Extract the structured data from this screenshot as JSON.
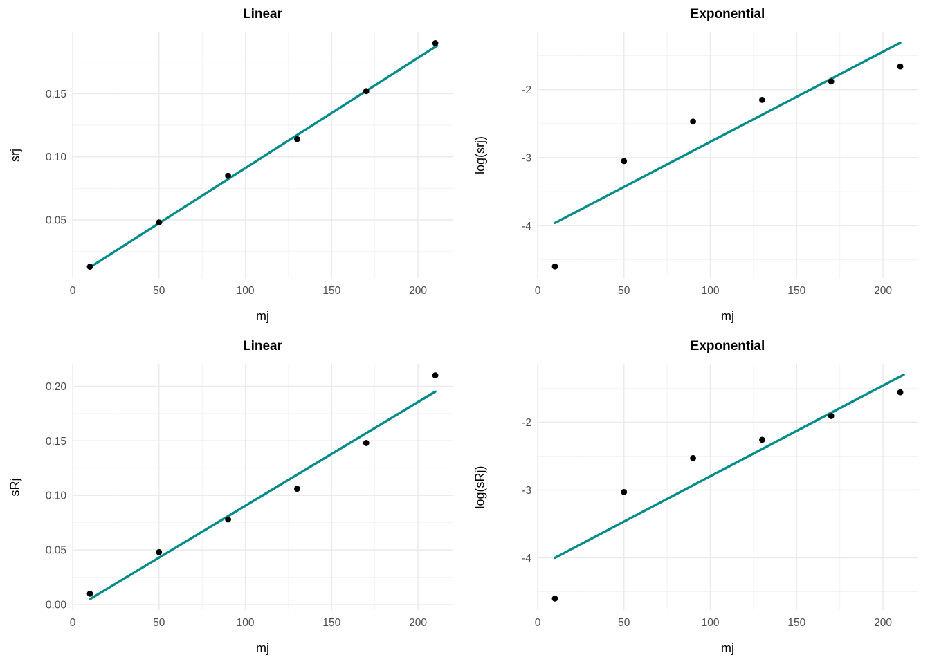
{
  "page": {
    "background": "#FFFFFF"
  },
  "colors": {
    "fit_line": "#008B8B",
    "point": "#000000",
    "grid_major": "#EBEBEB",
    "grid_minor": "#F2F2F2",
    "tick_text": "#4D4D4D",
    "title_text": "#000000",
    "background": "#FFFFFF"
  },
  "chart_data": [
    {
      "type": "scatter",
      "title": "Linear",
      "xlabel": "mj",
      "ylabel": "srj",
      "grid": true,
      "legend": "none",
      "xlim": [
        0,
        220
      ],
      "ylim": [
        0.004,
        0.199
      ],
      "xticks": [
        0,
        50,
        100,
        150,
        200
      ],
      "xtick_labels": [
        "0",
        "50",
        "100",
        "150",
        "200"
      ],
      "yticks": [
        0.05,
        0.1,
        0.15
      ],
      "ytick_labels": [
        "0.05",
        "0.10",
        "0.15"
      ],
      "points": {
        "x": [
          10,
          50,
          90,
          130,
          170,
          210
        ],
        "y": [
          0.013,
          0.048,
          0.085,
          0.114,
          0.152,
          0.19
        ]
      },
      "fit_line": {
        "x": [
          10,
          211
        ],
        "y": [
          0.0125,
          0.188
        ]
      }
    },
    {
      "type": "scatter",
      "title": "Exponential",
      "xlabel": "mj",
      "ylabel": "log(srj)",
      "grid": true,
      "legend": "none",
      "xlim": [
        0,
        220
      ],
      "ylim": [
        -4.77,
        -1.15
      ],
      "xticks": [
        0,
        50,
        100,
        150,
        200
      ],
      "xtick_labels": [
        "0",
        "50",
        "100",
        "150",
        "200"
      ],
      "yticks": [
        -4,
        -3,
        -2
      ],
      "ytick_labels": [
        "-4",
        "-3",
        "-2"
      ],
      "points": {
        "x": [
          10,
          50,
          90,
          130,
          170,
          210
        ],
        "y": [
          -4.6,
          -3.05,
          -2.47,
          -2.15,
          -1.88,
          -1.66
        ]
      },
      "fit_line": {
        "x": [
          10,
          210
        ],
        "y": [
          -3.96,
          -1.31
        ]
      }
    },
    {
      "type": "scatter",
      "title": "Linear",
      "xlabel": "mj",
      "ylabel": "sRj",
      "grid": true,
      "legend": "none",
      "xlim": [
        0,
        220
      ],
      "ylim": [
        -0.005,
        0.2205
      ],
      "xticks": [
        0,
        50,
        100,
        150,
        200
      ],
      "xtick_labels": [
        "0",
        "50",
        "100",
        "150",
        "200"
      ],
      "yticks": [
        0.0,
        0.05,
        0.1,
        0.15,
        0.2
      ],
      "ytick_labels": [
        "0.00",
        "0.05",
        "0.10",
        "0.15",
        "0.20"
      ],
      "points": {
        "x": [
          10,
          50,
          90,
          130,
          170,
          210
        ],
        "y": [
          0.01,
          0.048,
          0.078,
          0.106,
          0.148,
          0.21
        ]
      },
      "fit_line": {
        "x": [
          10,
          210
        ],
        "y": [
          0.005,
          0.195
        ]
      }
    },
    {
      "type": "scatter",
      "title": "Exponential",
      "xlabel": "mj",
      "ylabel": "log(sRj)",
      "grid": true,
      "legend": "none",
      "xlim": [
        0,
        220
      ],
      "ylim": [
        -4.77,
        -1.14
      ],
      "xticks": [
        0,
        50,
        100,
        150,
        200
      ],
      "xtick_labels": [
        "0",
        "50",
        "100",
        "150",
        "200"
      ],
      "yticks": [
        -4,
        -3,
        -2
      ],
      "ytick_labels": [
        "-4",
        "-3",
        "-2"
      ],
      "points": {
        "x": [
          10,
          50,
          90,
          130,
          170,
          210
        ],
        "y": [
          -4.6,
          -3.03,
          -2.53,
          -2.26,
          -1.91,
          -1.56
        ]
      },
      "fit_line": {
        "x": [
          10,
          212
        ],
        "y": [
          -4.0,
          -1.3
        ]
      }
    }
  ]
}
